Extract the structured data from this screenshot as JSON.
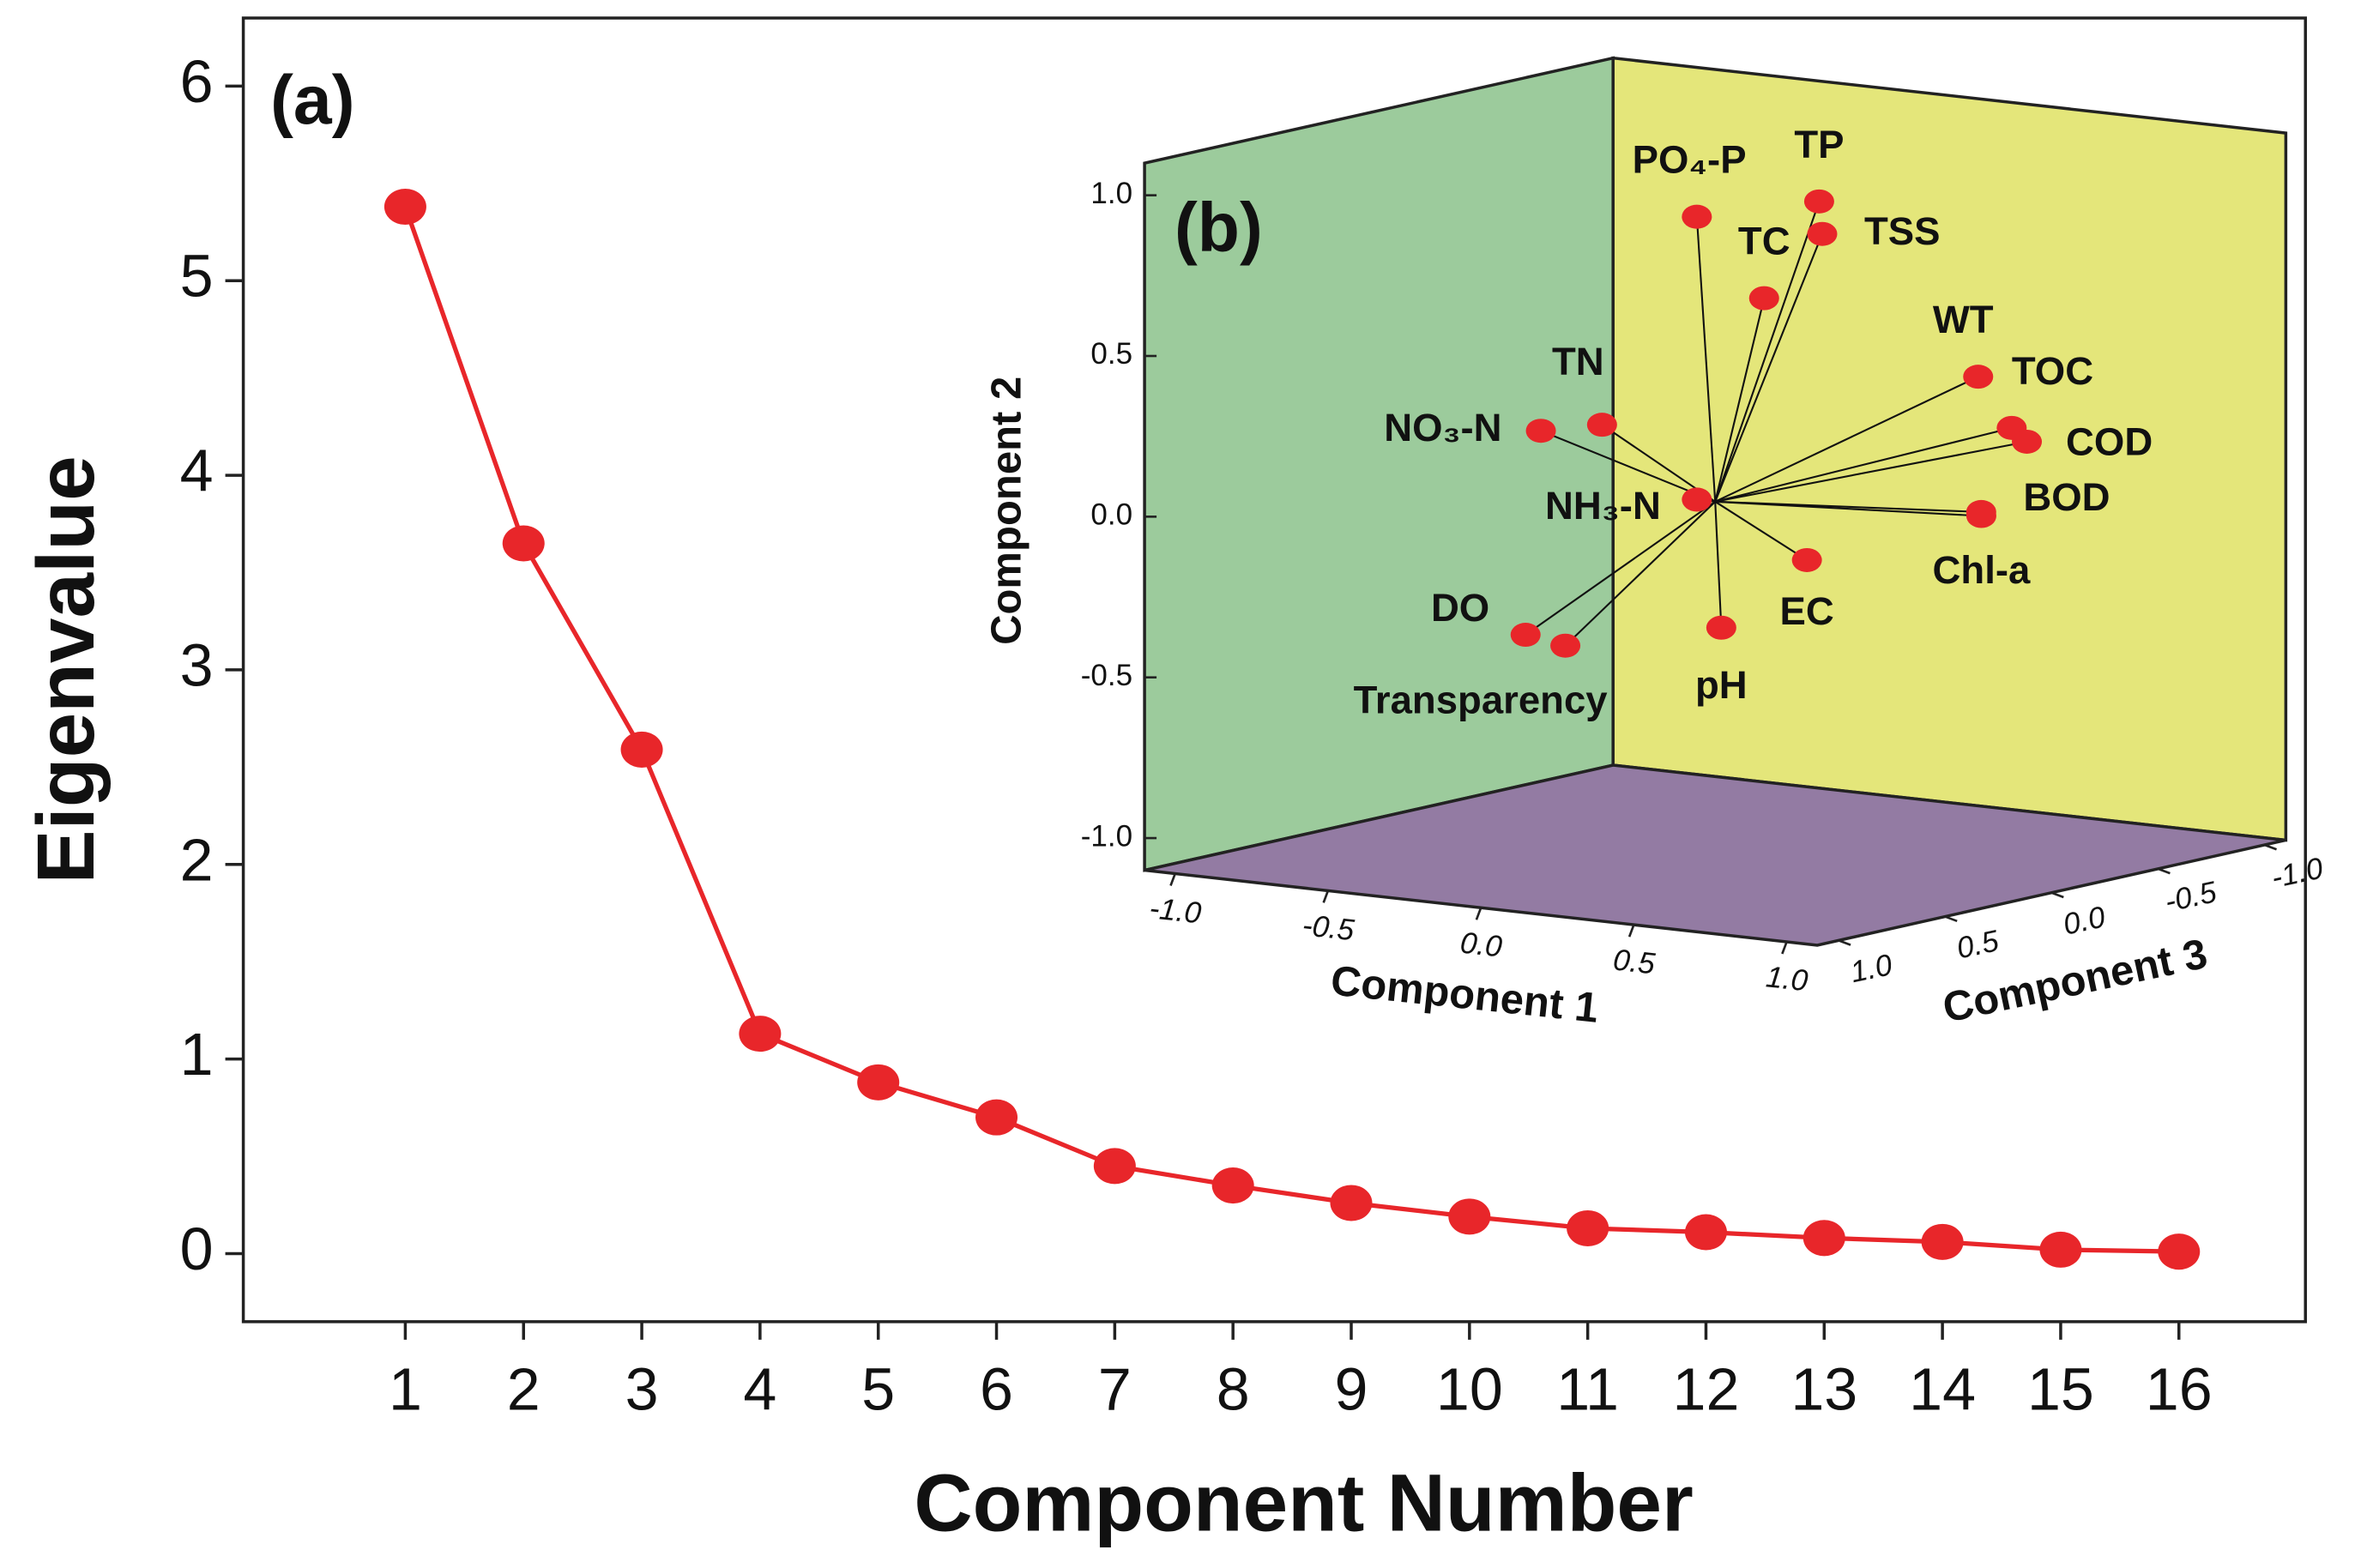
{
  "chart_data": [
    {
      "type": "line",
      "panel_label": "(a)",
      "xlabel": "Component Number",
      "ylabel": "Eigenvalue",
      "x": [
        1,
        2,
        3,
        4,
        5,
        6,
        7,
        8,
        9,
        10,
        11,
        12,
        13,
        14,
        15,
        16
      ],
      "values": [
        5.38,
        3.65,
        2.59,
        1.13,
        0.88,
        0.7,
        0.45,
        0.35,
        0.26,
        0.19,
        0.13,
        0.11,
        0.08,
        0.06,
        0.02,
        0.01
      ],
      "color": "#e8262a",
      "xlim": [
        -0.37,
        17.07
      ],
      "xticks": [
        1,
        2,
        3,
        4,
        5,
        6,
        7,
        8,
        9,
        10,
        11,
        12,
        13,
        14,
        15,
        16
      ],
      "ylim": [
        -0.35,
        6.35
      ],
      "yticks": [
        0,
        1,
        2,
        3,
        4,
        5,
        6
      ]
    },
    {
      "type": "scatter3d",
      "panel_label": "(b)",
      "xlabel": "Component 1",
      "ylabel": "Component 2",
      "zlabel": "Component 3",
      "labels": [
        "PO₄-P",
        "TP",
        "TSS",
        "TC",
        "WT",
        "TOC",
        "COD",
        "BOD",
        "Chl-a",
        "EC",
        "pH",
        "NH₃-N",
        "TN",
        "NO₃-N",
        "DO",
        "Transparency"
      ],
      "x": [
        -0.06,
        0.34,
        0.35,
        0.16,
        0.86,
        0.9,
        0.88,
        0.87,
        0.94,
        0.3,
        0.02,
        -0.06,
        -0.37,
        -0.57,
        -0.62,
        -0.49
      ],
      "y": [
        0.88,
        0.97,
        0.87,
        0.65,
        0.48,
        0.31,
        0.25,
        0.06,
        0.07,
        -0.15,
        -0.39,
        0.0,
        0.2,
        0.16,
        -0.48,
        -0.5
      ],
      "z": [
        0,
        0,
        0,
        0,
        0,
        -0.1,
        -0.2,
        0,
        0.1,
        0,
        0,
        0,
        0,
        0,
        0,
        0
      ],
      "color": "#e8262a",
      "pane_colors": {
        "left": "#9ccb9c",
        "right": "#e4e67a",
        "floor": "#937ba3"
      },
      "xlim": [
        -1.1,
        1.1
      ],
      "ylim": [
        -1.1,
        1.1
      ],
      "zlim": [
        -1.1,
        1.1
      ],
      "xticks": [
        {
          "value": -1,
          "label": "-1.0"
        },
        -0.5,
        {
          "value": 0,
          "label": "0.0"
        },
        0.5,
        {
          "value": 1,
          "label": "1.0"
        }
      ],
      "yticks": [
        {
          "value": 1,
          "label": "1.0"
        },
        0.5,
        {
          "value": 0,
          "label": "0.0"
        },
        -0.5,
        {
          "value": -1,
          "label": "-1.0"
        }
      ],
      "zticks": [
        {
          "value": 1,
          "label": "1.0"
        },
        0.5,
        {
          "value": 0,
          "label": "0.0"
        },
        -0.5,
        {
          "value": -1,
          "label": "-1.0"
        }
      ]
    }
  ]
}
